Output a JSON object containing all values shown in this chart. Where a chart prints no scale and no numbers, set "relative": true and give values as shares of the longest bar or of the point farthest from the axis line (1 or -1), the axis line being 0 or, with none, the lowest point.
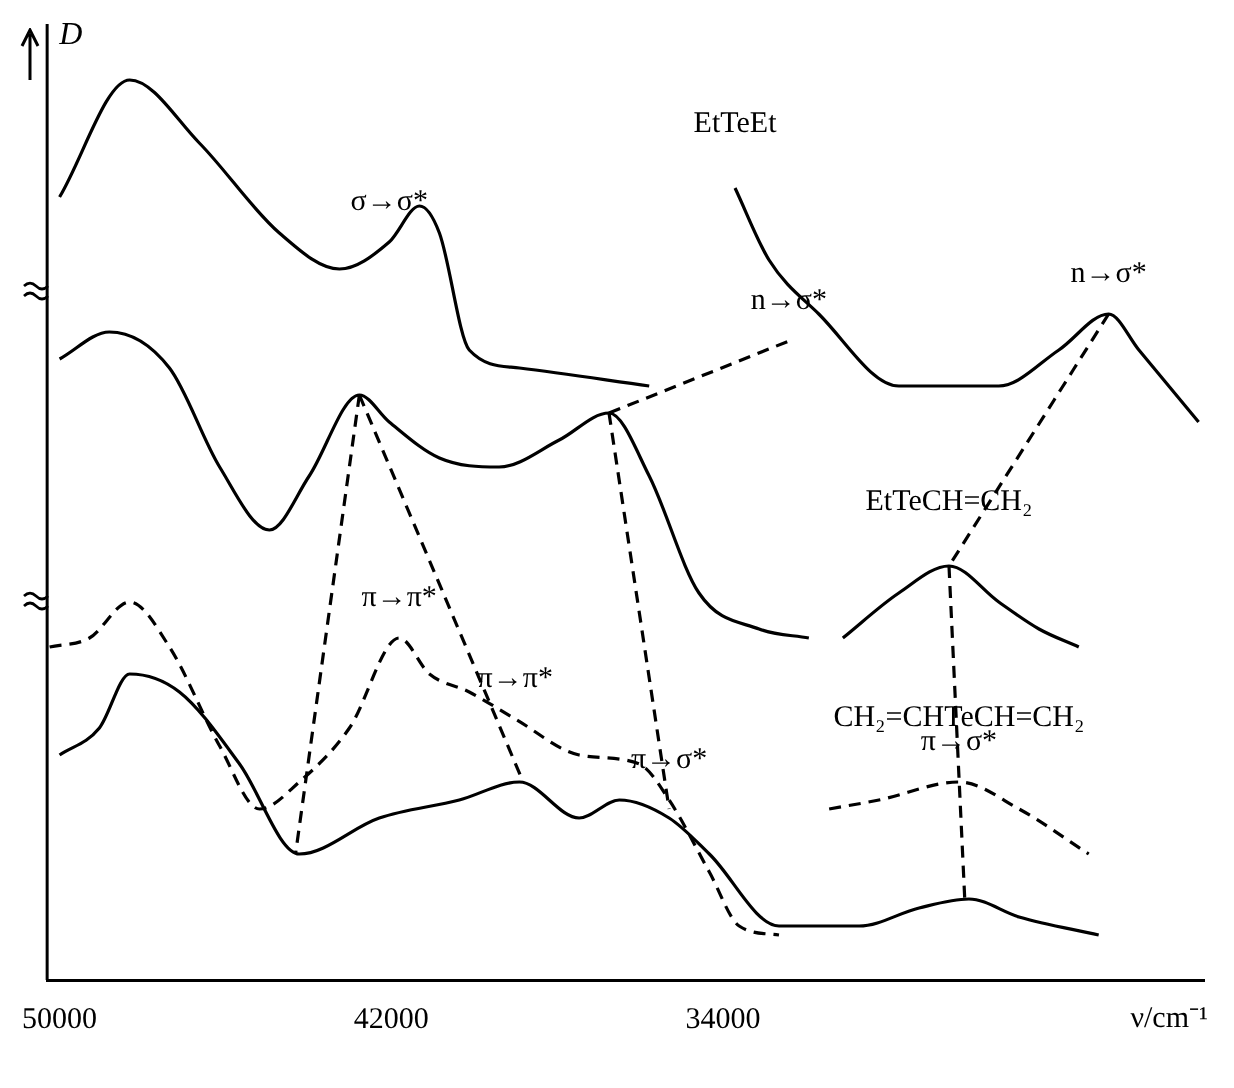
{
  "chart_data": {
    "type": "line",
    "relative": true,
    "ylabel": "D",
    "xlabel": "ν/cm⁻¹",
    "xlim": [
      50300,
      22400
    ],
    "xticks": [
      50000,
      42000,
      34000
    ],
    "grid": false,
    "legend": false,
    "marker": "none",
    "series": [
      {
        "color": "#000000",
        "line_style": "solid",
        "x": [
          50000,
          48310,
          46630,
          44700,
          43250,
          42050,
          41320,
          40840,
          40120,
          38910,
          35780
        ],
        "values": [
          0.87,
          1.0,
          0.93,
          0.83,
          0.79,
          0.82,
          0.86,
          0.83,
          0.7,
          0.68,
          0.66
        ]
      },
      {
        "name": "EtTeEt",
        "color": "#000000",
        "line_style": "solid",
        "x": [
          33710,
          32890,
          31690,
          29760,
          27350,
          25900,
          24700,
          23970,
          22530
        ],
        "values": [
          0.88,
          0.8,
          0.74,
          0.66,
          0.66,
          0.7,
          0.74,
          0.7,
          0.62
        ]
      },
      {
        "color": "#000000",
        "line_style": "solid",
        "x": [
          50000,
          48800,
          47350,
          46140,
          44940,
          43980,
          42770,
          42050,
          40840,
          39400,
          37950,
          36750,
          35780,
          34580,
          33130,
          31930
        ],
        "values": [
          0.69,
          0.72,
          0.68,
          0.57,
          0.5,
          0.56,
          0.65,
          0.62,
          0.58,
          0.57,
          0.6,
          0.63,
          0.56,
          0.43,
          0.39,
          0.38
        ]
      },
      {
        "name": "EtTeCH=CH₂",
        "color": "#000000",
        "line_style": "solid",
        "x": [
          31110,
          29760,
          28550,
          27350,
          26380,
          25420
        ],
        "values": [
          0.38,
          0.43,
          0.46,
          0.42,
          0.39,
          0.37
        ]
      },
      {
        "color": "#000000",
        "line_style": "dashed",
        "x": [
          50240,
          49280,
          48310,
          47350,
          46140,
          45180,
          44220,
          43010,
          41810,
          41080,
          40120,
          39010,
          37470,
          36020,
          35300,
          34330,
          33610,
          32650
        ],
        "values": [
          0.37,
          0.38,
          0.42,
          0.37,
          0.26,
          0.19,
          0.22,
          0.28,
          0.38,
          0.34,
          0.32,
          0.29,
          0.25,
          0.24,
          0.2,
          0.12,
          0.06,
          0.05
        ]
      },
      {
        "name": "CH₂=CHTeCH=CH₂",
        "color": "#000000",
        "line_style": "dashed",
        "x": [
          31440,
          30240,
          28310,
          26860,
          25180
        ],
        "values": [
          0.19,
          0.2,
          0.22,
          0.19,
          0.14
        ]
      },
      {
        "color": "#000000",
        "line_style": "solid",
        "x": [
          50000,
          49040,
          48310,
          47110,
          45660,
          44220,
          42290,
          40360,
          38910,
          37470,
          36500,
          35300,
          34330,
          32650,
          30720,
          29270,
          28070,
          26860,
          24940
        ],
        "values": [
          0.25,
          0.28,
          0.34,
          0.32,
          0.24,
          0.14,
          0.18,
          0.2,
          0.22,
          0.18,
          0.2,
          0.18,
          0.14,
          0.06,
          0.06,
          0.08,
          0.09,
          0.07,
          0.05
        ]
      },
      {
        "color": "#000000",
        "line_style": "dashed",
        "x": [
          42770,
          44310
        ],
        "values": [
          0.65,
          0.14
        ]
      },
      {
        "color": "#000000",
        "line_style": "dashed",
        "x": [
          42770,
          38820
        ],
        "values": [
          0.65,
          0.22
        ]
      },
      {
        "color": "#000000",
        "line_style": "dashed",
        "x": [
          36750,
          35300
        ],
        "values": [
          0.63,
          0.19
        ]
      },
      {
        "color": "#000000",
        "line_style": "dashed",
        "x": [
          36750,
          32410
        ],
        "values": [
          0.63,
          0.71
        ]
      },
      {
        "color": "#000000",
        "line_style": "dashed",
        "x": [
          24700,
          28550
        ],
        "values": [
          0.74,
          0.46
        ]
      },
      {
        "color": "#000000",
        "line_style": "dashed",
        "x": [
          28550,
          28170
        ],
        "values": [
          0.46,
          0.09
        ]
      }
    ],
    "annotations": [
      {
        "text": "σ→σ*",
        "x": 42050,
        "y": 0.82
      },
      {
        "text": "n→σ*",
        "x": 32410,
        "y": 0.71
      },
      {
        "text": "n→σ*",
        "x": 24700,
        "y": 0.74
      },
      {
        "text": "π→π*",
        "x": 41810,
        "y": 0.38
      },
      {
        "text": "π→π*",
        "x": 39010,
        "y": 0.29
      },
      {
        "text": "π→σ*",
        "x": 35300,
        "y": 0.2
      },
      {
        "text": "π→σ*",
        "x": 28310,
        "y": 0.22
      }
    ]
  }
}
